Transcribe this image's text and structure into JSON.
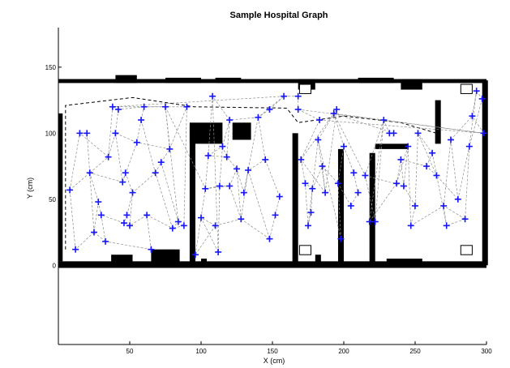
{
  "chart_data": {
    "type": "scatter",
    "title": "Sample Hospital Graph",
    "xlabel": "X (cm)",
    "ylabel": "Y (cm)",
    "xlim": [
      0,
      300
    ],
    "ylim": [
      -60,
      180
    ],
    "xticks": [
      50,
      100,
      150,
      200,
      250,
      300
    ],
    "yticks": [
      0,
      50,
      100,
      150
    ],
    "grid": false,
    "marker": "+",
    "colors": {
      "marker": "#1515ff",
      "edge": "#8a8f8a",
      "wall": "#000000"
    },
    "points": [
      [
        12,
        12
      ],
      [
        8,
        57
      ],
      [
        15,
        100
      ],
      [
        20,
        100
      ],
      [
        22,
        70
      ],
      [
        25,
        25
      ],
      [
        28,
        48
      ],
      [
        30,
        38
      ],
      [
        33,
        18
      ],
      [
        35,
        82
      ],
      [
        38,
        120
      ],
      [
        42,
        118
      ],
      [
        40,
        100
      ],
      [
        45,
        63
      ],
      [
        46,
        32
      ],
      [
        48,
        38
      ],
      [
        50,
        30
      ],
      [
        47,
        70
      ],
      [
        52,
        55
      ],
      [
        55,
        93
      ],
      [
        58,
        110
      ],
      [
        60,
        120
      ],
      [
        62,
        38
      ],
      [
        65,
        12
      ],
      [
        68,
        70
      ],
      [
        72,
        78
      ],
      [
        75,
        120
      ],
      [
        78,
        88
      ],
      [
        80,
        28
      ],
      [
        84,
        33
      ],
      [
        88,
        30
      ],
      [
        90,
        120
      ],
      [
        96,
        8
      ],
      [
        100,
        36
      ],
      [
        103,
        58
      ],
      [
        105,
        83
      ],
      [
        108,
        128
      ],
      [
        110,
        30
      ],
      [
        112,
        10
      ],
      [
        113,
        60
      ],
      [
        115,
        90
      ],
      [
        118,
        82
      ],
      [
        120,
        110
      ],
      [
        120,
        60
      ],
      [
        125,
        73
      ],
      [
        128,
        35
      ],
      [
        130,
        55
      ],
      [
        133,
        72
      ],
      [
        140,
        112
      ],
      [
        145,
        80
      ],
      [
        148,
        20
      ],
      [
        152,
        38
      ],
      [
        155,
        52
      ],
      [
        158,
        128
      ],
      [
        168,
        128
      ],
      [
        170,
        80
      ],
      [
        173,
        62
      ],
      [
        175,
        30
      ],
      [
        177,
        40
      ],
      [
        178,
        58
      ],
      [
        182,
        95
      ],
      [
        185,
        75
      ],
      [
        187,
        55
      ],
      [
        193,
        115
      ],
      [
        196,
        62
      ],
      [
        198,
        20
      ],
      [
        200,
        90
      ],
      [
        205,
        45
      ],
      [
        207,
        70
      ],
      [
        210,
        55
      ],
      [
        215,
        68
      ],
      [
        218,
        33
      ],
      [
        222,
        33
      ],
      [
        228,
        110
      ],
      [
        232,
        100
      ],
      [
        235,
        100
      ],
      [
        237,
        62
      ],
      [
        240,
        80
      ],
      [
        242,
        60
      ],
      [
        245,
        90
      ],
      [
        247,
        30
      ],
      [
        250,
        45
      ],
      [
        252,
        100
      ],
      [
        258,
        75
      ],
      [
        262,
        85
      ],
      [
        265,
        68
      ],
      [
        270,
        45
      ],
      [
        272,
        30
      ],
      [
        275,
        95
      ],
      [
        280,
        50
      ],
      [
        285,
        35
      ],
      [
        288,
        90
      ],
      [
        290,
        113
      ],
      [
        293,
        132
      ],
      [
        297,
        126
      ],
      [
        298,
        100
      ],
      [
        183,
        110
      ],
      [
        195,
        118
      ],
      [
        168,
        118
      ],
      [
        148,
        118
      ]
    ],
    "edges": [
      [
        0,
        1
      ],
      [
        1,
        2
      ],
      [
        2,
        3
      ],
      [
        3,
        4
      ],
      [
        4,
        1
      ],
      [
        4,
        5
      ],
      [
        5,
        0
      ],
      [
        5,
        6
      ],
      [
        6,
        7
      ],
      [
        7,
        8
      ],
      [
        8,
        5
      ],
      [
        6,
        4
      ],
      [
        4,
        9
      ],
      [
        9,
        2
      ],
      [
        9,
        10
      ],
      [
        10,
        11
      ],
      [
        11,
        12
      ],
      [
        12,
        9
      ],
      [
        12,
        13
      ],
      [
        13,
        4
      ],
      [
        13,
        17
      ],
      [
        17,
        18
      ],
      [
        18,
        15
      ],
      [
        15,
        14
      ],
      [
        14,
        16
      ],
      [
        16,
        18
      ],
      [
        14,
        7
      ],
      [
        13,
        19
      ],
      [
        19,
        12
      ],
      [
        19,
        20
      ],
      [
        20,
        21
      ],
      [
        21,
        11
      ],
      [
        20,
        24
      ],
      [
        24,
        18
      ],
      [
        24,
        25
      ],
      [
        25,
        27
      ],
      [
        27,
        19
      ],
      [
        26,
        21
      ],
      [
        26,
        29
      ],
      [
        26,
        27
      ],
      [
        22,
        16
      ],
      [
        22,
        23
      ],
      [
        23,
        8
      ],
      [
        22,
        28
      ],
      [
        28,
        29
      ],
      [
        29,
        30
      ],
      [
        30,
        28
      ],
      [
        28,
        24
      ],
      [
        27,
        31
      ],
      [
        31,
        26
      ],
      [
        25,
        29
      ],
      [
        31,
        30
      ],
      [
        32,
        33
      ],
      [
        33,
        34
      ],
      [
        34,
        35
      ],
      [
        35,
        36
      ],
      [
        36,
        38
      ],
      [
        37,
        33
      ],
      [
        38,
        39
      ],
      [
        39,
        34
      ],
      [
        39,
        40
      ],
      [
        40,
        41
      ],
      [
        41,
        35
      ],
      [
        41,
        42
      ],
      [
        42,
        36
      ],
      [
        43,
        39
      ],
      [
        43,
        44
      ],
      [
        44,
        41
      ],
      [
        44,
        45
      ],
      [
        45,
        43
      ],
      [
        45,
        47
      ],
      [
        47,
        46
      ],
      [
        46,
        44
      ],
      [
        46,
        48
      ],
      [
        48,
        42
      ],
      [
        48,
        49
      ],
      [
        49,
        47
      ],
      [
        42,
        40
      ],
      [
        37,
        32
      ],
      [
        37,
        45
      ],
      [
        38,
        33
      ],
      [
        47,
        50
      ],
      [
        50,
        45
      ],
      [
        50,
        51
      ],
      [
        51,
        52
      ],
      [
        52,
        49
      ],
      [
        53,
        48
      ],
      [
        53,
        54
      ],
      [
        99,
        48
      ],
      [
        99,
        53
      ],
      [
        55,
        56
      ],
      [
        56,
        57
      ],
      [
        57,
        58
      ],
      [
        58,
        59
      ],
      [
        59,
        56
      ],
      [
        59,
        61
      ],
      [
        60,
        57
      ],
      [
        60,
        62
      ],
      [
        61,
        62
      ],
      [
        62,
        55
      ],
      [
        61,
        64
      ],
      [
        64,
        65
      ],
      [
        65,
        60
      ],
      [
        64,
        66
      ],
      [
        66,
        68
      ],
      [
        68,
        69
      ],
      [
        69,
        67
      ],
      [
        67,
        64
      ],
      [
        66,
        63
      ],
      [
        63,
        70
      ],
      [
        70,
        72
      ],
      [
        72,
        73
      ],
      [
        73,
        70
      ],
      [
        73,
        74
      ],
      [
        74,
        75
      ],
      [
        75,
        63
      ],
      [
        55,
        97
      ],
      [
        97,
        62
      ],
      [
        97,
        60
      ],
      [
        96,
        95
      ],
      [
        95,
        63
      ],
      [
        96,
        55
      ],
      [
        98,
        95
      ],
      [
        98,
        96
      ],
      [
        54,
        98
      ],
      [
        72,
        71
      ],
      [
        71,
        73
      ],
      [
        71,
        76
      ],
      [
        76,
        77
      ],
      [
        77,
        78
      ],
      [
        78,
        79
      ],
      [
        79,
        76
      ],
      [
        79,
        80
      ],
      [
        80,
        81
      ],
      [
        81,
        78
      ],
      [
        81,
        82
      ],
      [
        82,
        85
      ],
      [
        85,
        83
      ],
      [
        83,
        84
      ],
      [
        84,
        82
      ],
      [
        84,
        87
      ],
      [
        87,
        86
      ],
      [
        86,
        88
      ],
      [
        88,
        89
      ],
      [
        89,
        85
      ],
      [
        89,
        91
      ],
      [
        91,
        90
      ],
      [
        90,
        86
      ],
      [
        88,
        92
      ],
      [
        92,
        93
      ],
      [
        93,
        94
      ],
      [
        94,
        91
      ],
      [
        95,
        92
      ],
      [
        90,
        87
      ],
      [
        80,
        86
      ],
      [
        77,
        83
      ],
      [
        93,
        91
      ],
      [
        75,
        74
      ],
      [
        70,
        78
      ],
      [
        53,
        10
      ],
      [
        10,
        21
      ],
      [
        21,
        26
      ],
      [
        26,
        34
      ],
      [
        34,
        43
      ],
      [
        35,
        40
      ]
    ],
    "walls": [
      [
        0,
        0,
        300,
        -2
      ],
      [
        0,
        138,
        300,
        141
      ],
      [
        0,
        -2,
        300,
        3
      ],
      [
        0,
        3,
        3,
        115
      ],
      [
        297,
        0,
        301,
        140
      ],
      [
        92,
        0,
        96,
        105
      ],
      [
        164,
        0,
        168,
        100
      ],
      [
        196,
        0,
        200,
        88
      ],
      [
        218,
        0,
        222,
        85
      ],
      [
        92,
        92,
        115,
        108
      ],
      [
        122,
        95,
        135,
        108
      ],
      [
        264,
        92,
        268,
        125
      ],
      [
        222,
        88,
        245,
        92
      ],
      [
        37,
        0,
        52,
        8
      ],
      [
        65,
        0,
        85,
        12
      ],
      [
        100,
        0,
        104,
        5
      ],
      [
        180,
        0,
        184,
        8
      ],
      [
        230,
        0,
        255,
        5
      ],
      [
        40,
        138,
        55,
        144
      ],
      [
        75,
        138,
        100,
        142
      ],
      [
        110,
        138,
        128,
        142
      ],
      [
        168,
        133,
        180,
        141
      ],
      [
        210,
        138,
        235,
        142
      ],
      [
        240,
        133,
        255,
        141
      ]
    ],
    "boxes": [
      [
        169,
        8,
        177,
        15
      ],
      [
        282,
        8,
        290,
        15
      ],
      [
        169,
        130,
        177,
        137
      ],
      [
        282,
        130,
        290,
        137
      ]
    ],
    "boundary": [
      [
        5,
        12
      ],
      [
        5,
        121
      ],
      [
        52,
        127
      ],
      [
        95,
        120
      ],
      [
        160,
        119
      ],
      [
        168,
        108
      ],
      [
        200,
        113
      ],
      [
        240,
        108
      ],
      [
        265,
        100
      ]
    ]
  }
}
